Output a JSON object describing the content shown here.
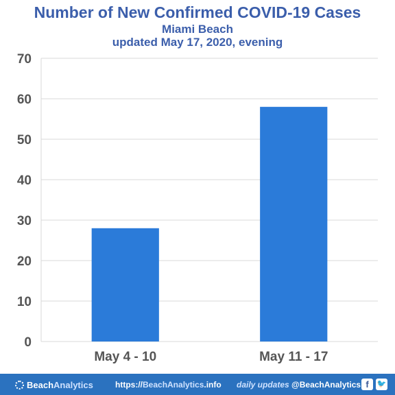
{
  "chart_data": {
    "type": "bar",
    "title": "Number of New Confirmed COVID-19 Cases",
    "subtitle": "Miami Beach",
    "subtitle2": "updated May 17, 2020, evening",
    "categories": [
      "May 4 - 10",
      "May 11 - 17"
    ],
    "values": [
      28,
      58
    ],
    "ylim": [
      0,
      70
    ],
    "yticks": [
      0,
      10,
      20,
      30,
      40,
      50,
      60,
      70
    ],
    "grid": true,
    "bar_color": "#2b7bd9",
    "xlabel": "",
    "ylabel": ""
  },
  "footer": {
    "brand_prefix": "Beach",
    "brand_suffix": "Analytics",
    "url_prefix": "https://",
    "url_brand": "BeachAnalytics",
    "url_suffix": ".info",
    "daily_label": "daily updates",
    "handle": "@BeachAnalytics",
    "facebook_icon": "f",
    "twitter_icon": "🐦",
    "background_color": "#2b72bf"
  }
}
